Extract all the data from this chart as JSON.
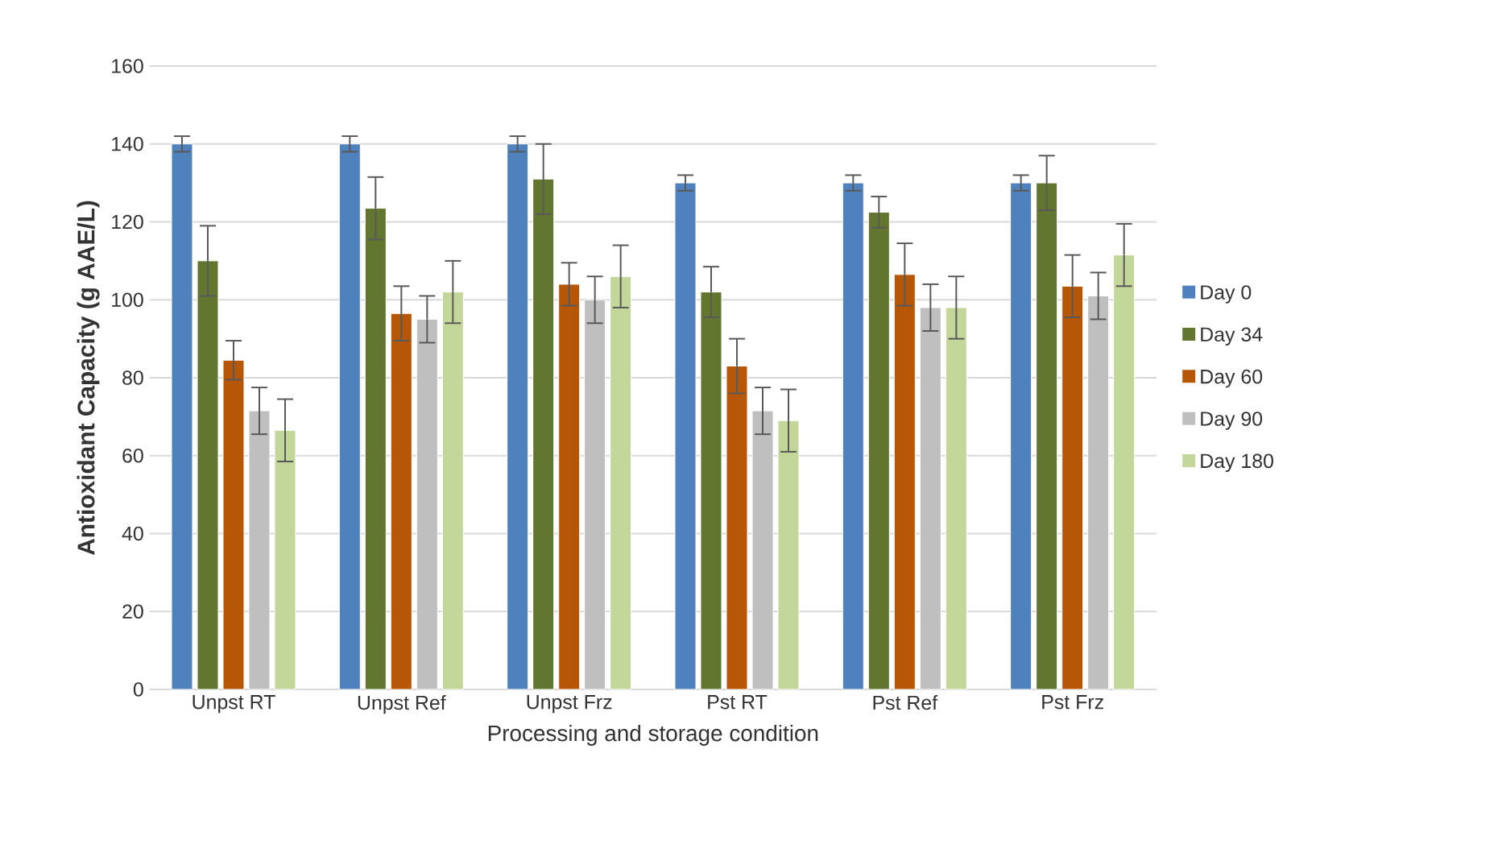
{
  "chart_data": {
    "type": "bar",
    "xlabel": "Processing and storage condition",
    "ylabel": "Antioxidant Capacity (g AAE/L)",
    "categories": [
      "Unpst RT",
      "Unpst Ref",
      "Unpst Frz",
      "Pst RT",
      "Pst Ref",
      "Pst Frz"
    ],
    "series": [
      {
        "name": "Day 0",
        "color": "#4f81bd",
        "values": [
          140,
          140,
          140,
          130,
          130,
          130
        ],
        "errors": [
          2,
          2,
          2,
          2,
          2,
          2
        ]
      },
      {
        "name": "Day 34",
        "color": "#62762f",
        "values": [
          110,
          123.5,
          131,
          102,
          122.5,
          130
        ],
        "errors": [
          9,
          8,
          9,
          6.5,
          4,
          7
        ]
      },
      {
        "name": "Day 60",
        "color": "#b65708",
        "values": [
          84.5,
          96.5,
          104,
          83,
          106.5,
          103.5
        ],
        "errors": [
          5,
          7,
          5.5,
          7,
          8,
          8
        ]
      },
      {
        "name": "Day 90",
        "color": "#bfbfbf",
        "values": [
          71.5,
          95,
          100,
          71.5,
          98,
          101
        ],
        "errors": [
          6,
          6,
          6,
          6,
          6,
          6
        ]
      },
      {
        "name": "Day 180",
        "color": "#c4d79b",
        "values": [
          66.5,
          102,
          106,
          69,
          98,
          111.5
        ],
        "errors": [
          8,
          8,
          8,
          8,
          8,
          8
        ]
      }
    ],
    "ylim": [
      0,
      160
    ],
    "yticks": [
      0,
      20,
      40,
      60,
      80,
      100,
      120,
      140,
      160
    ],
    "grid": "y",
    "legend": "right"
  }
}
